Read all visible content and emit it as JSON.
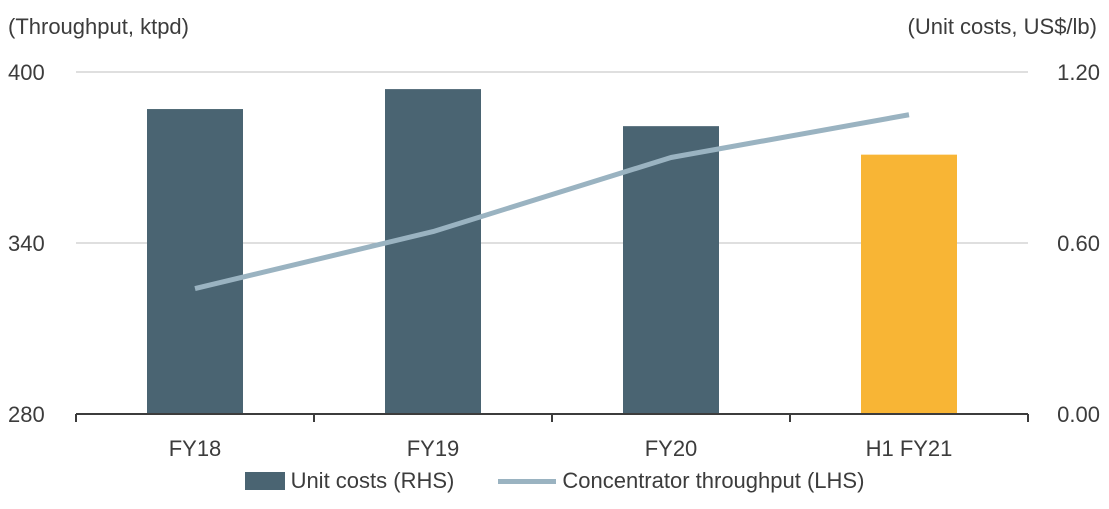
{
  "chart_data": {
    "type": "bar",
    "categories": [
      "FY18",
      "FY19",
      "FY20",
      "H1 FY21"
    ],
    "series": [
      {
        "name": "Unit costs (RHS)",
        "type": "bar",
        "axis": "right",
        "values": [
          1.07,
          1.14,
          1.01,
          0.91
        ],
        "colors": [
          "#4a6472",
          "#4a6472",
          "#4a6472",
          "#f8b535"
        ]
      },
      {
        "name": "Concentrator throughput (LHS)",
        "type": "line",
        "axis": "left",
        "values": [
          324,
          344,
          370,
          385
        ],
        "color": "#9ab3c1"
      }
    ],
    "left_axis": {
      "label": "(Throughput, ktpd)",
      "ticks": [
        "400",
        "340",
        "280"
      ],
      "range": [
        280,
        400
      ]
    },
    "right_axis": {
      "label": "(Unit costs, US$/lb)",
      "ticks": [
        "1.20",
        "0.60",
        "0.00"
      ],
      "range": [
        0,
        1.2
      ]
    },
    "grid": true,
    "legend_position": "bottom"
  }
}
